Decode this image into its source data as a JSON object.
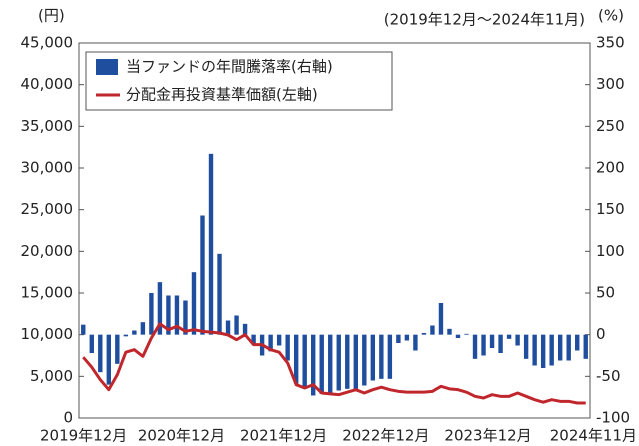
{
  "chart_data": {
    "type": "bar",
    "subtitle": "(2019年12月～2024年11月)",
    "y_label": "(円)",
    "y2_label": "(%)",
    "categories": [
      "2019年12月",
      null,
      null,
      null,
      null,
      null,
      null,
      null,
      null,
      null,
      null,
      null,
      "2020年12月",
      null,
      null,
      null,
      null,
      null,
      null,
      null,
      null,
      null,
      null,
      null,
      "2021年12月",
      null,
      null,
      null,
      null,
      null,
      null,
      null,
      null,
      null,
      null,
      null,
      "2022年12月",
      null,
      null,
      null,
      null,
      null,
      null,
      null,
      null,
      null,
      null,
      null,
      "2023年12月",
      null,
      null,
      null,
      null,
      null,
      null,
      null,
      null,
      null,
      null,
      "2024年11月"
    ],
    "series": [
      {
        "name": "当ファンドの年間騰落率(右軸)",
        "type": "bar",
        "axis": "y2",
        "color": "#1f4e9e",
        "values": [
          12,
          -22,
          -45,
          -60,
          -35,
          -2,
          5,
          15,
          50,
          63,
          47,
          47,
          41,
          75,
          143,
          217,
          97,
          17,
          23,
          13,
          -12,
          -25,
          -20,
          -13,
          -31,
          -59,
          -65,
          -73,
          -71,
          -71,
          -67,
          -65,
          -67,
          -61,
          -55,
          -53,
          -53,
          -10,
          -7,
          -19,
          2,
          11,
          38,
          7,
          -4,
          1,
          -29,
          -25,
          -16,
          -22,
          -5,
          -13,
          -29,
          -37,
          -40,
          -37,
          -31,
          -31,
          -19,
          -29
        ]
      },
      {
        "name": "分配金再投資基準価額(左軸)",
        "type": "line",
        "color": "#c0272d",
        "values": [
          7300,
          6100,
          4600,
          3400,
          5200,
          7900,
          8200,
          7400,
          9600,
          11300,
          10600,
          11000,
          10400,
          10600,
          10400,
          10300,
          10200,
          9960,
          9400,
          10000,
          8800,
          8800,
          8200,
          7900,
          6600,
          4000,
          3600,
          4000,
          3000,
          2900,
          2800,
          3100,
          3400,
          3000,
          3400,
          3700,
          3400,
          3200,
          3100,
          3100,
          3100,
          3200,
          3800,
          3500,
          3400,
          3100,
          2600,
          2400,
          2800,
          2600,
          2600,
          3000,
          2600,
          2200,
          1900,
          2200,
          2000,
          2000,
          1800,
          1800
        ]
      }
    ],
    "ylim": [
      0,
      45000
    ],
    "yticks": [
      0,
      {
        "value": 5000,
        "label": "5,000"
      },
      {
        "value": 10000,
        "label": "10,000"
      },
      {
        "value": 15000,
        "label": "15,000"
      },
      {
        "value": 20000,
        "label": "20,000"
      },
      {
        "value": 25000,
        "label": "25,000"
      },
      {
        "value": 30000,
        "label": "30,000"
      },
      {
        "value": 35000,
        "label": "35,000"
      },
      {
        "value": 40000,
        "label": "40,000"
      },
      {
        "value": 45000,
        "label": "45,000"
      }
    ],
    "y2lim": [
      -100,
      350
    ],
    "y2ticks": [
      -100,
      -50,
      0,
      50,
      100,
      150,
      200,
      250,
      300,
      350
    ],
    "legend": "upper left"
  }
}
